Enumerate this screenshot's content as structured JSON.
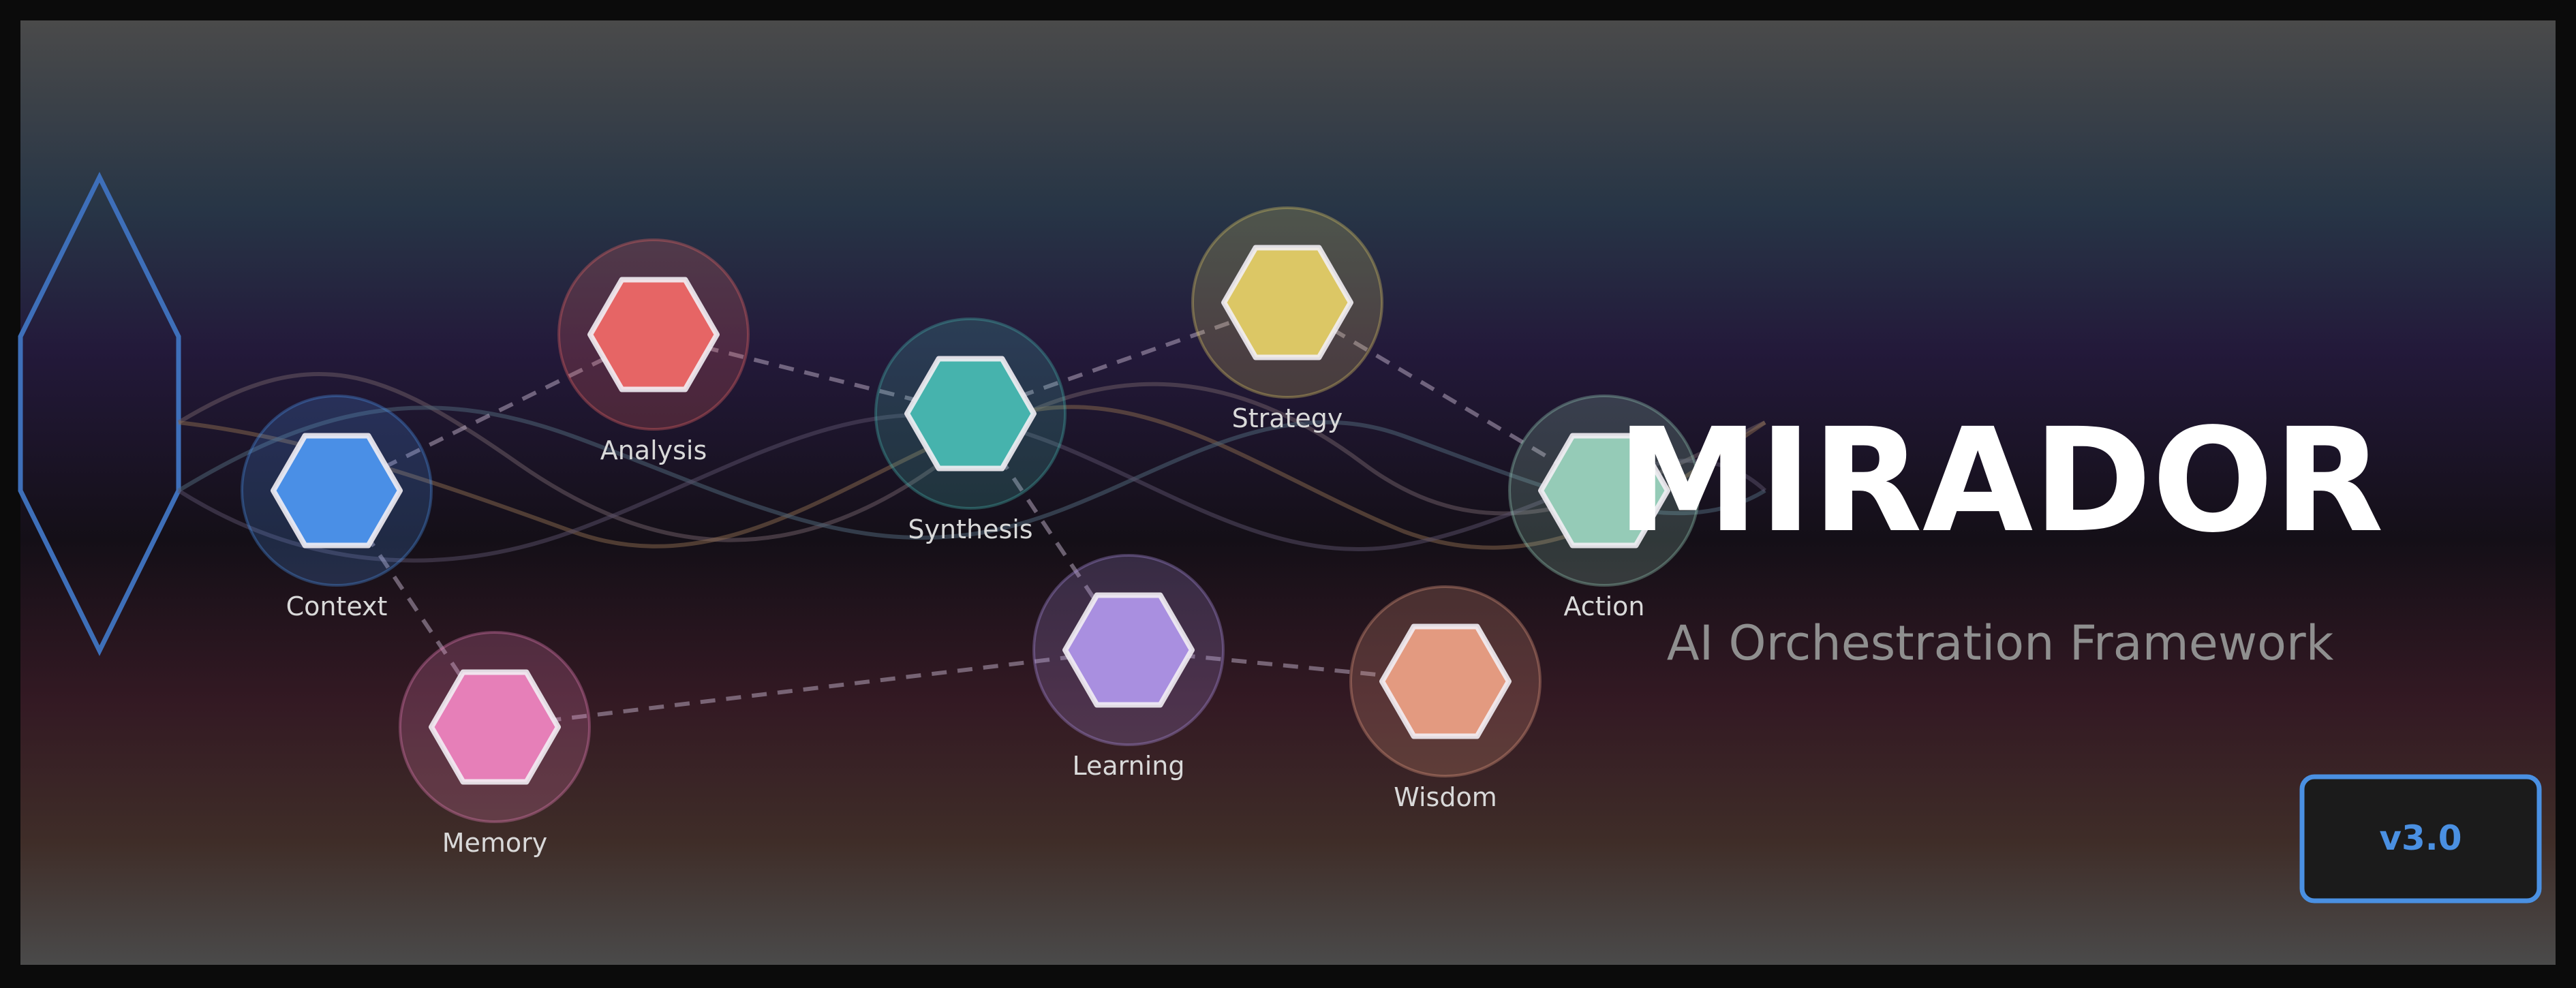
{
  "brand": {
    "title": "MIRADOR",
    "subtitle": "AI Orchestration Framework",
    "version": "v3.0"
  },
  "colors": {
    "frame": "#0b0b0b",
    "gradient_top": "#4a4a4a",
    "gradient_mid_blue": "#273546",
    "gradient_purple": "#23193a",
    "gradient_dark": "#140f17",
    "gradient_red": "#331923",
    "gradient_brown": "#3f2d28",
    "gradient_bottom": "#4a4a4a",
    "crystal_stroke": "#3e6fb9",
    "title_color": "#ffffff",
    "subtitle_color": "#8f8f8f",
    "label_color": "#d9d9d9",
    "badge_border": "#4a90e2",
    "badge_bg": "#1b1b1b",
    "badge_text": "#4a90e2",
    "edge_color": "#c0b0c8"
  },
  "nodes": [
    {
      "id": "context",
      "label": "Context",
      "color": "#4a8fe6"
    },
    {
      "id": "memory",
      "label": "Memory",
      "color": "#e67fb8"
    },
    {
      "id": "analysis",
      "label": "Analysis",
      "color": "#e66565"
    },
    {
      "id": "synthesis",
      "label": "Synthesis",
      "color": "#46b3ad"
    },
    {
      "id": "learning",
      "label": "Learning",
      "color": "#a98fe0"
    },
    {
      "id": "strategy",
      "label": "Strategy",
      "color": "#dcc765"
    },
    {
      "id": "wisdom",
      "label": "Wisdom",
      "color": "#e39a80"
    },
    {
      "id": "action",
      "label": "Action",
      "color": "#95cbb7"
    }
  ],
  "edges": [
    [
      "context",
      "analysis"
    ],
    [
      "context",
      "memory"
    ],
    [
      "analysis",
      "synthesis"
    ],
    [
      "synthesis",
      "strategy"
    ],
    [
      "synthesis",
      "learning"
    ],
    [
      "strategy",
      "action"
    ],
    [
      "memory",
      "learning"
    ],
    [
      "learning",
      "wisdom"
    ]
  ]
}
